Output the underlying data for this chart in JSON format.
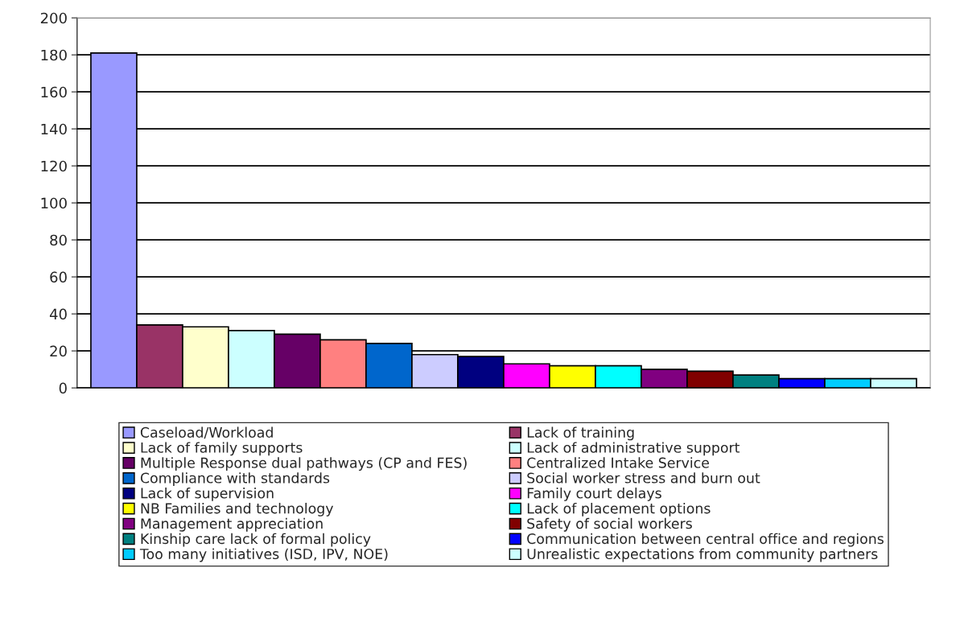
{
  "chart_data": {
    "type": "bar",
    "categories": [
      null,
      null,
      null,
      null,
      null,
      null,
      null,
      null,
      null,
      null,
      null,
      null,
      null,
      null,
      null,
      null,
      null,
      null
    ],
    "series": [
      {
        "name": "Caseload/Workload",
        "color": "#9999ff",
        "values": [
          181,
          null,
          null,
          null,
          null,
          null,
          null,
          null,
          null,
          null,
          null,
          null,
          null,
          null,
          null,
          null,
          null,
          null
        ]
      },
      {
        "name": "Lack of training",
        "color": "#993366",
        "values": [
          null,
          34,
          null,
          null,
          null,
          null,
          null,
          null,
          null,
          null,
          null,
          null,
          null,
          null,
          null,
          null,
          null,
          null
        ]
      },
      {
        "name": "Lack of family supports",
        "color": "#ffffcc",
        "values": [
          null,
          null,
          33,
          null,
          null,
          null,
          null,
          null,
          null,
          null,
          null,
          null,
          null,
          null,
          null,
          null,
          null,
          null
        ]
      },
      {
        "name": "Lack of administrative support",
        "color": "#ccffff",
        "values": [
          null,
          null,
          null,
          31,
          null,
          null,
          null,
          null,
          null,
          null,
          null,
          null,
          null,
          null,
          null,
          null,
          null,
          null
        ]
      },
      {
        "name": "Multiple Response dual pathways (CP and FES)",
        "color": "#660066",
        "values": [
          null,
          null,
          null,
          null,
          29,
          null,
          null,
          null,
          null,
          null,
          null,
          null,
          null,
          null,
          null,
          null,
          null,
          null
        ]
      },
      {
        "name": "Centralized Intake Service",
        "color": "#ff8080",
        "values": [
          null,
          null,
          null,
          null,
          null,
          26,
          null,
          null,
          null,
          null,
          null,
          null,
          null,
          null,
          null,
          null,
          null,
          null
        ]
      },
      {
        "name": "Compliance with standards",
        "color": "#0066cc",
        "values": [
          null,
          null,
          null,
          null,
          null,
          null,
          24,
          null,
          null,
          null,
          null,
          null,
          null,
          null,
          null,
          null,
          null,
          null
        ]
      },
      {
        "name": "Social worker stress and burn out",
        "color": "#ccccff",
        "values": [
          null,
          null,
          null,
          null,
          null,
          null,
          null,
          18,
          null,
          null,
          null,
          null,
          null,
          null,
          null,
          null,
          null,
          null
        ]
      },
      {
        "name": "Lack of supervision",
        "color": "#000080",
        "values": [
          null,
          null,
          null,
          null,
          null,
          null,
          null,
          null,
          17,
          null,
          null,
          null,
          null,
          null,
          null,
          null,
          null,
          null
        ]
      },
      {
        "name": "Family court delays",
        "color": "#ff00ff",
        "values": [
          null,
          null,
          null,
          null,
          null,
          null,
          null,
          null,
          null,
          13,
          null,
          null,
          null,
          null,
          null,
          null,
          null,
          null
        ]
      },
      {
        "name": "NB Families and technology",
        "color": "#ffff00",
        "values": [
          null,
          null,
          null,
          null,
          null,
          null,
          null,
          null,
          null,
          null,
          12,
          null,
          null,
          null,
          null,
          null,
          null,
          null
        ]
      },
      {
        "name": "Lack of placement options",
        "color": "#00ffff",
        "values": [
          null,
          null,
          null,
          null,
          null,
          null,
          null,
          null,
          null,
          null,
          null,
          12,
          null,
          null,
          null,
          null,
          null,
          null
        ]
      },
      {
        "name": "Management appreciation",
        "color": "#800080",
        "values": [
          null,
          null,
          null,
          null,
          null,
          null,
          null,
          null,
          null,
          null,
          null,
          null,
          10,
          null,
          null,
          null,
          null,
          null
        ]
      },
      {
        "name": "Safety of social workers",
        "color": "#800000",
        "values": [
          null,
          null,
          null,
          null,
          null,
          null,
          null,
          null,
          null,
          null,
          null,
          null,
          null,
          9,
          null,
          null,
          null,
          null
        ]
      },
      {
        "name": "Kinship care lack of formal policy",
        "color": "#008080",
        "values": [
          null,
          null,
          null,
          null,
          null,
          null,
          null,
          null,
          null,
          null,
          null,
          null,
          null,
          null,
          7,
          null,
          null,
          null
        ]
      },
      {
        "name": "Communication between central office and regions",
        "color": "#0000ff",
        "values": [
          null,
          null,
          null,
          null,
          null,
          null,
          null,
          null,
          null,
          null,
          null,
          null,
          null,
          null,
          null,
          5,
          null,
          null
        ]
      },
      {
        "name": "Too many initiatives (ISD, IPV, NOE)",
        "color": "#00ccff",
        "values": [
          null,
          null,
          null,
          null,
          null,
          null,
          null,
          null,
          null,
          null,
          null,
          null,
          null,
          null,
          null,
          null,
          5,
          null
        ]
      },
      {
        "name": "Unrealistic expectations from community partners",
        "color": "#ccffff",
        "values": [
          null,
          null,
          null,
          null,
          null,
          null,
          null,
          null,
          null,
          null,
          null,
          null,
          null,
          null,
          null,
          null,
          null,
          5
        ]
      }
    ],
    "ylim": [
      0,
      200
    ],
    "yticks": [
      0,
      20,
      40,
      60,
      80,
      100,
      120,
      140,
      160,
      180,
      200
    ],
    "grid": "y",
    "legend": "bottom"
  }
}
